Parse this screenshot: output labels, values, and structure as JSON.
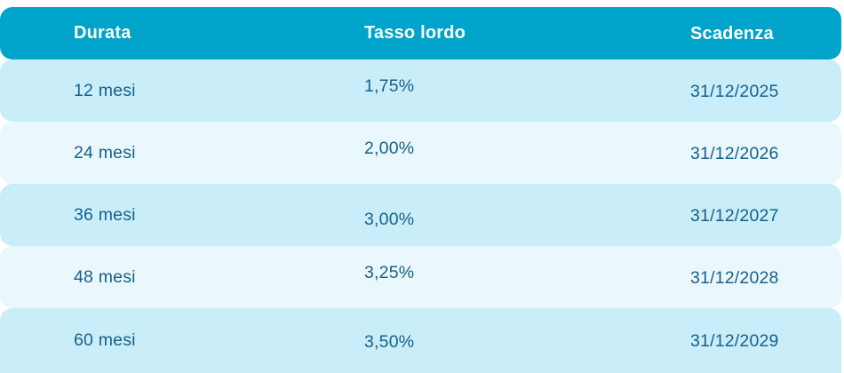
{
  "chart_data": {
    "type": "table",
    "title": "",
    "columns": [
      "Durata",
      "Tasso lordo",
      "Scadenza"
    ],
    "rows": [
      [
        "12 mesi",
        "1,75%",
        "31/12/2025"
      ],
      [
        "24 mesi",
        "2,00%",
        "31/12/2026"
      ],
      [
        "36 mesi",
        "3,00%",
        "31/12/2027"
      ],
      [
        "48 mesi",
        "3,25%",
        "31/12/2028"
      ],
      [
        "60 mesi",
        "3,50%",
        "31/12/2029"
      ]
    ]
  },
  "colors": {
    "header_bg": "#00A3C9",
    "row_alt_dark": "#C9EEF9",
    "row_alt_light": "#EAF8FD",
    "cell_text": "#17608C",
    "header_text": "#FFFFFF"
  }
}
